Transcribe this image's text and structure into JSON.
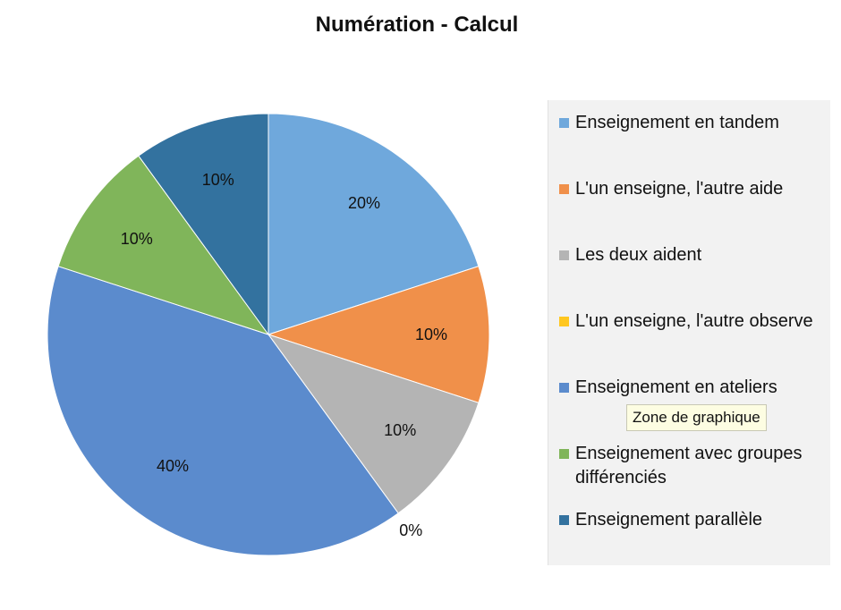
{
  "chart_data": {
    "type": "pie",
    "title": "Numération - Calcul",
    "categories": [
      "Enseignement en tandem",
      "L'un enseigne, l'autre aide",
      "Les deux aident",
      "L'un enseigne, l'autre observe",
      "Enseignement en ateliers",
      "Enseignement avec groupes différenciés",
      "Enseignement parallèle"
    ],
    "values": [
      20,
      10,
      10,
      0,
      40,
      10,
      10
    ],
    "value_labels": [
      "20%",
      "10%",
      "10%",
      "0%",
      "40%",
      "10%",
      "10%"
    ],
    "colors": [
      "#6fa8dc",
      "#f0904a",
      "#b4b4b4",
      "#ffc720",
      "#5b8bcd",
      "#80b55a",
      "#33729f"
    ],
    "legend_position": "right",
    "start_angle_deg": 0,
    "direction": "clockwise"
  },
  "legend": {
    "items": [
      {
        "label": "Enseignement en tandem",
        "color": "#6fa8dc"
      },
      {
        "label": "L'un enseigne, l'autre aide",
        "color": "#f0904a"
      },
      {
        "label": "Les deux aident",
        "color": "#b4b4b4"
      },
      {
        "label": "L'un enseigne, l'autre observe",
        "color": "#ffc720"
      },
      {
        "label": "Enseignement en ateliers",
        "color": "#5b8bcd"
      },
      {
        "label": "Enseignement avec groupes différenciés",
        "color": "#80b55a"
      },
      {
        "label": "Enseignement parallèle",
        "color": "#33729f"
      }
    ]
  },
  "tooltip": {
    "text": "Zone de graphique"
  }
}
